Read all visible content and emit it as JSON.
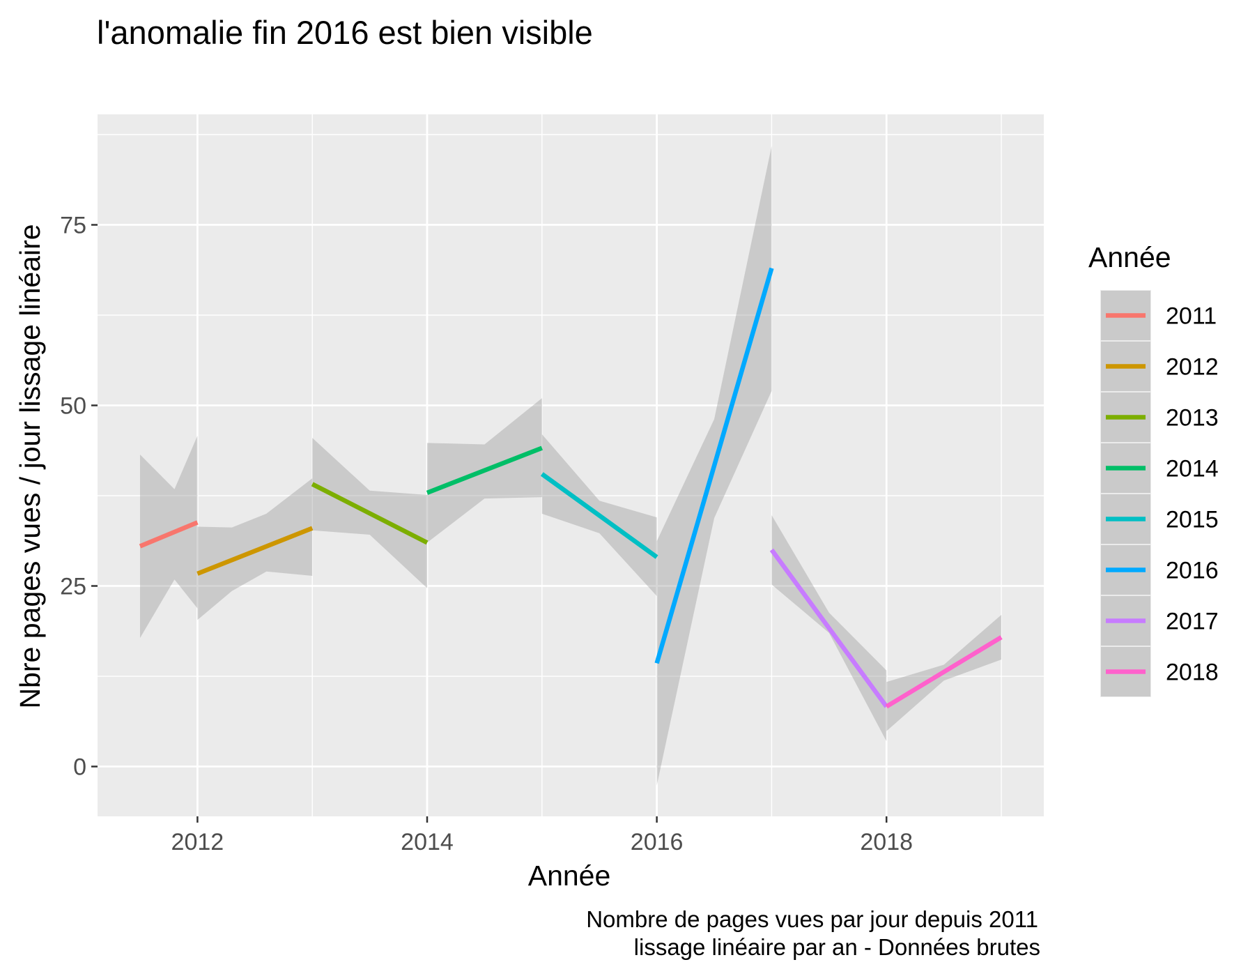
{
  "chart_data": {
    "type": "line",
    "title": "l'anomalie fin 2016 est bien visible",
    "xlabel": "Année",
    "ylabel": "Nbre pages vues / jour lissage linéaire",
    "caption": [
      "Nombre de pages vues par jour depuis 2011",
      "lissage linéaire par an - Données brutes"
    ],
    "xlim": [
      2011.13,
      2019.37
    ],
    "ylim": [
      -6.9,
      90.3
    ],
    "x_ticks": [
      2012,
      2014,
      2016,
      2018
    ],
    "x_tick_labels": [
      "2012",
      "2014",
      "2016",
      "2018"
    ],
    "y_ticks": [
      0,
      25,
      50,
      75
    ],
    "y_tick_labels": [
      "0",
      "25",
      "50",
      "75"
    ],
    "grid": true,
    "background": "#ebebeb",
    "band_color": "#999999",
    "legend": {
      "title": "Année",
      "position": "right"
    },
    "series": [
      {
        "name": "2011",
        "color": "#f8766d",
        "line": [
          [
            2011.5,
            30.5
          ],
          [
            2012.0,
            33.8
          ]
        ],
        "band": [
          [
            2011.5,
            17.8,
            43.2
          ],
          [
            2011.8,
            25.9,
            38.4
          ],
          [
            2012.0,
            21.9,
            45.8
          ]
        ]
      },
      {
        "name": "2012",
        "color": "#cd9600",
        "line": [
          [
            2012.0,
            26.7
          ],
          [
            2013.0,
            33.0
          ]
        ],
        "band": [
          [
            2012.0,
            20.3,
            33.2
          ],
          [
            2012.3,
            24.3,
            33.1
          ],
          [
            2012.6,
            27.0,
            35.0
          ],
          [
            2013.0,
            26.4,
            39.9
          ]
        ]
      },
      {
        "name": "2013",
        "color": "#7cae00",
        "line": [
          [
            2013.0,
            39.1
          ],
          [
            2014.0,
            31.0
          ]
        ],
        "band": [
          [
            2013.0,
            32.7,
            45.5
          ],
          [
            2013.5,
            32.1,
            38.2
          ],
          [
            2014.0,
            24.7,
            37.6
          ]
        ]
      },
      {
        "name": "2014",
        "color": "#00be67",
        "line": [
          [
            2014.0,
            37.9
          ],
          [
            2015.0,
            44.1
          ]
        ],
        "band": [
          [
            2014.0,
            31.0,
            44.8
          ],
          [
            2014.5,
            37.1,
            44.6
          ],
          [
            2015.0,
            37.3,
            51.0
          ]
        ]
      },
      {
        "name": "2015",
        "color": "#00bfc4",
        "line": [
          [
            2015.0,
            40.5
          ],
          [
            2016.0,
            29.0
          ]
        ],
        "band": [
          [
            2015.0,
            35.0,
            46.0
          ],
          [
            2015.5,
            32.3,
            36.8
          ],
          [
            2016.0,
            23.6,
            34.5
          ]
        ]
      },
      {
        "name": "2016",
        "color": "#00a9ff",
        "line": [
          [
            2016.0,
            14.3
          ],
          [
            2017.0,
            69.0
          ]
        ],
        "band": [
          [
            2016.0,
            -2.6,
            31.2
          ],
          [
            2016.5,
            34.4,
            48.1
          ],
          [
            2017.0,
            52.0,
            85.9
          ]
        ]
      },
      {
        "name": "2017",
        "color": "#c77cff",
        "line": [
          [
            2017.0,
            30.0
          ],
          [
            2018.0,
            8.3
          ]
        ],
        "band": [
          [
            2017.0,
            25.2,
            34.8
          ],
          [
            2017.5,
            18.5,
            21.3
          ],
          [
            2018.0,
            3.5,
            13.3
          ]
        ]
      },
      {
        "name": "2018",
        "color": "#ff61cc",
        "line": [
          [
            2018.0,
            8.3
          ],
          [
            2019.0,
            17.9
          ]
        ],
        "band": [
          [
            2018.0,
            4.9,
            11.7
          ],
          [
            2018.5,
            11.9,
            14.1
          ],
          [
            2019.0,
            14.8,
            21.0
          ]
        ]
      }
    ]
  }
}
